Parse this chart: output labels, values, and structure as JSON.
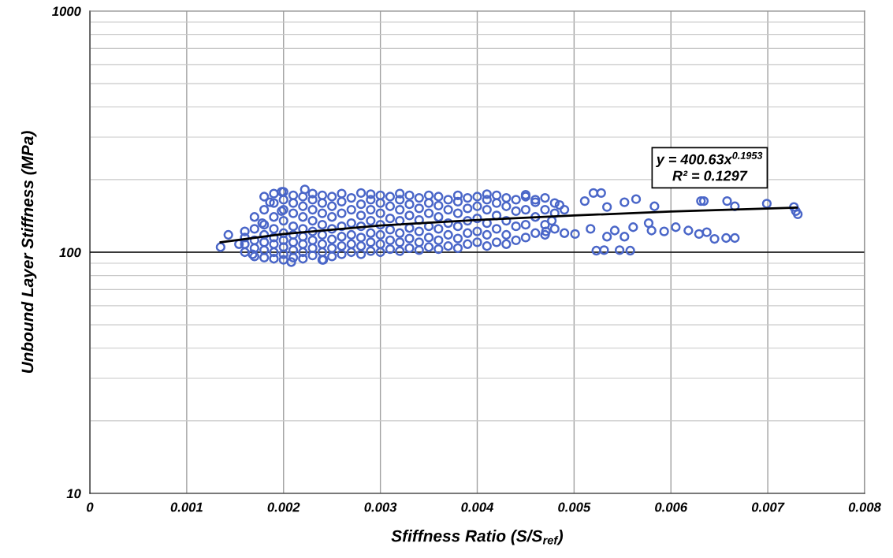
{
  "chart_data": {
    "type": "scatter",
    "xlabel": "Sfiffness Ratio (S/S$_{ref}$)",
    "ylabel": "Unbound Layer Stiffness (MPa)",
    "xlim": [
      0,
      0.008
    ],
    "xticks": [
      0,
      0.001,
      0.002,
      0.003,
      0.004,
      0.005,
      0.006,
      0.007,
      0.008
    ],
    "ylim": [
      10,
      1000
    ],
    "yticks": [
      10,
      100,
      1000
    ],
    "log": "y",
    "grid": true,
    "legend": false,
    "ref_lines": [
      {
        "axis": "y",
        "value": 100,
        "color": "#000000"
      }
    ],
    "annotations": [
      "y = 400.63x$^{0.1953}$\nR² = 0.1297"
    ],
    "series": [
      {
        "color": "#4a66c8",
        "marker": "circle",
        "x": [
          0.00135,
          0.00143,
          0.00186,
          0.00198,
          0.00222,
          0.00178,
          0.00198,
          0.00241,
          0.00208,
          0.00168,
          0.00154,
          0.0016,
          0.0016,
          0.0016,
          0.0016,
          0.0017,
          0.0017,
          0.0017,
          0.0017,
          0.0017,
          0.0018,
          0.0018,
          0.0018,
          0.0018,
          0.0018,
          0.0018,
          0.0018,
          0.0019,
          0.0019,
          0.0019,
          0.0019,
          0.0019,
          0.0019,
          0.0019,
          0.0019,
          0.002,
          0.002,
          0.002,
          0.002,
          0.002,
          0.002,
          0.002,
          0.002,
          0.002,
          0.0021,
          0.0021,
          0.0021,
          0.0021,
          0.0021,
          0.0021,
          0.0021,
          0.0021,
          0.0022,
          0.0022,
          0.0022,
          0.0022,
          0.0022,
          0.0022,
          0.0022,
          0.0022,
          0.0023,
          0.0023,
          0.0023,
          0.0023,
          0.0023,
          0.0023,
          0.0023,
          0.0023,
          0.0024,
          0.0024,
          0.0024,
          0.0024,
          0.0024,
          0.0024,
          0.0024,
          0.0024,
          0.0025,
          0.0025,
          0.0025,
          0.0025,
          0.0025,
          0.0025,
          0.0025,
          0.0026,
          0.0026,
          0.0026,
          0.0026,
          0.0026,
          0.0026,
          0.0026,
          0.0027,
          0.0027,
          0.0027,
          0.0027,
          0.0027,
          0.0027,
          0.0028,
          0.0028,
          0.0028,
          0.0028,
          0.0028,
          0.0028,
          0.0028,
          0.0029,
          0.0029,
          0.0029,
          0.0029,
          0.0029,
          0.0029,
          0.0029,
          0.003,
          0.003,
          0.003,
          0.003,
          0.003,
          0.003,
          0.003,
          0.0031,
          0.0031,
          0.0031,
          0.0031,
          0.0031,
          0.0031,
          0.0032,
          0.0032,
          0.0032,
          0.0032,
          0.0032,
          0.0032,
          0.0032,
          0.0033,
          0.0033,
          0.0033,
          0.0033,
          0.0033,
          0.0033,
          0.0034,
          0.0034,
          0.0034,
          0.0034,
          0.0034,
          0.0034,
          0.0035,
          0.0035,
          0.0035,
          0.0035,
          0.0035,
          0.0035,
          0.0036,
          0.0036,
          0.0036,
          0.0036,
          0.0036,
          0.0036,
          0.0037,
          0.0037,
          0.0037,
          0.0037,
          0.0037,
          0.0038,
          0.0038,
          0.0038,
          0.0038,
          0.0038,
          0.0038,
          0.0039,
          0.0039,
          0.0039,
          0.0039,
          0.0039,
          0.004,
          0.004,
          0.004,
          0.004,
          0.004,
          0.0041,
          0.0041,
          0.0041,
          0.0041,
          0.0041,
          0.0041,
          0.0042,
          0.0042,
          0.0042,
          0.0042,
          0.0042,
          0.0043,
          0.0043,
          0.0043,
          0.0043,
          0.0043,
          0.0044,
          0.0044,
          0.0044,
          0.0044,
          0.0045,
          0.0045,
          0.0045,
          0.0045,
          0.0046,
          0.0046,
          0.0046,
          0.0047,
          0.0047,
          0.0047,
          0.0047,
          0.0048,
          0.0048,
          0.0048,
          0.0049,
          0.0049,
          0.0045,
          0.0046,
          0.00471,
          0.00477,
          0.00485,
          0.00501,
          0.00511,
          0.00517,
          0.0052,
          0.00528,
          0.00534,
          0.00534,
          0.00542,
          0.00552,
          0.00552,
          0.00561,
          0.00564,
          0.00577,
          0.0058,
          0.00583,
          0.00523,
          0.00531,
          0.00547,
          0.00558,
          0.00593,
          0.00605,
          0.00618,
          0.00629,
          0.00637,
          0.00645,
          0.00657,
          0.00666,
          0.00631,
          0.00634,
          0.00658,
          0.00666,
          0.00699,
          0.00727,
          0.00731,
          0.00729
        ],
        "values": [
          105,
          118,
          161,
          178,
          182,
          132,
          148,
          93,
          91,
          98,
          108,
          100,
          108,
          115,
          122,
          96,
          104,
          112,
          125,
          140,
          95,
          102,
          110,
          118,
          130,
          150,
          170,
          94,
          100,
          108,
          115,
          125,
          140,
          160,
          175,
          93,
          98,
          105,
          112,
          120,
          135,
          150,
          165,
          178,
          95,
          102,
          110,
          118,
          128,
          145,
          160,
          172,
          94,
          100,
          108,
          116,
          125,
          140,
          155,
          170,
          97,
          104,
          112,
          122,
          135,
          150,
          165,
          175,
          93,
          100,
          108,
          118,
          130,
          145,
          160,
          172,
          96,
          104,
          113,
          125,
          140,
          155,
          170,
          98,
          106,
          116,
          128,
          145,
          162,
          175,
          100,
          108,
          118,
          132,
          150,
          168,
          98,
          106,
          115,
          128,
          142,
          158,
          176,
          101,
          110,
          120,
          135,
          150,
          165,
          174,
          100,
          108,
          118,
          130,
          145,
          160,
          172,
          103,
          112,
          124,
          138,
          155,
          170,
          101,
          110,
          120,
          135,
          150,
          165,
          175,
          104,
          114,
          126,
          142,
          158,
          172,
          102,
          110,
          122,
          136,
          152,
          168,
          105,
          115,
          128,
          145,
          160,
          172,
          103,
          112,
          125,
          140,
          156,
          170,
          106,
          118,
          132,
          150,
          165,
          104,
          114,
          128,
          145,
          162,
          172,
          108,
          120,
          135,
          152,
          168,
          110,
          122,
          138,
          155,
          170,
          106,
          118,
          132,
          150,
          165,
          174,
          110,
          125,
          142,
          160,
          172,
          108,
          118,
          135,
          155,
          168,
          112,
          128,
          148,
          165,
          115,
          130,
          150,
          170,
          120,
          140,
          165,
          118,
          130,
          150,
          168,
          125,
          145,
          160,
          120,
          150,
          173,
          161,
          122,
          135,
          157,
          119,
          163,
          125,
          176,
          176,
          154,
          116,
          123,
          161,
          116,
          127,
          166,
          132,
          123,
          155,
          101.5,
          102,
          102,
          101.5,
          122,
          127,
          123,
          119,
          121,
          113.6,
          114.5,
          114.5,
          163,
          163,
          163,
          155,
          159,
          154,
          143.6,
          148
        ]
      },
      {
        "type": "line",
        "color": "#000000",
        "marker": "none",
        "line_style": "solid",
        "x": [
          0.00135,
          0.002,
          0.003,
          0.004,
          0.005,
          0.006,
          0.0073
        ],
        "values": [
          110,
          119,
          129,
          136,
          142,
          147.5,
          153
        ]
      }
    ]
  }
}
